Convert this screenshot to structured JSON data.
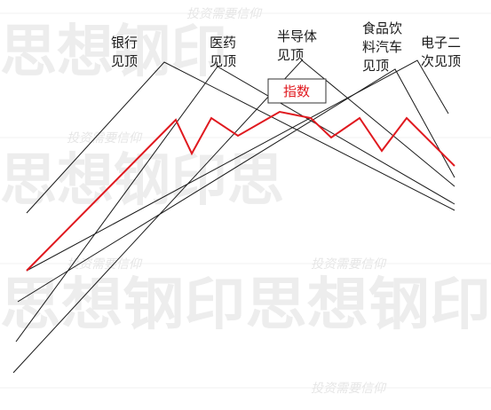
{
  "watermark": {
    "big_row_1": "思想钢印",
    "big_row_2": "思想钢印思",
    "big_row_3": "思想钢印思想钢印",
    "small_row_1": "投资需要信仰",
    "small_row_2": "投资需要信仰",
    "small_row_3": "投资需要信仰",
    "small_row_4": "投资需要信仰",
    "small_row_5": "投资需要信仰"
  },
  "labels": {
    "bank_1": "银行",
    "bank_2": "见顶",
    "pharma_1": "医药",
    "pharma_2": "见顶",
    "semi_1": "半导体",
    "semi_2": "见顶",
    "food_1": "食品饮",
    "food_2": "料汽车",
    "food_3": "见顶",
    "elec_1": "电子二",
    "elec_2": "次见顶",
    "index": "指数"
  },
  "colors": {
    "index_line": "#e0191f",
    "trend_lines": "#1a1a1a",
    "watermark": "#ededed"
  }
}
